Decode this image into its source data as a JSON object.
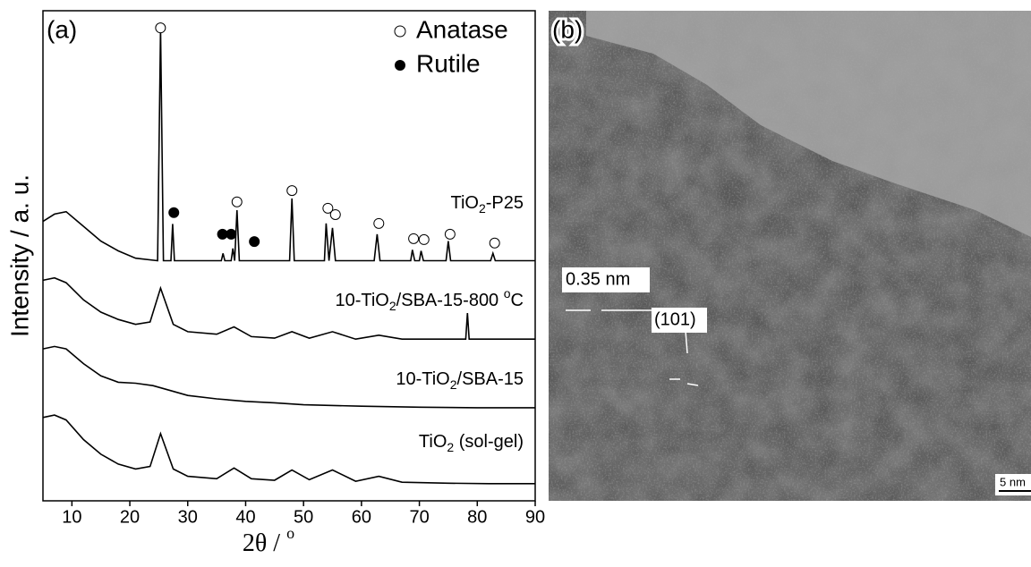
{
  "panel_labels": [
    "(a)",
    "(b)"
  ],
  "chart_data": {
    "type": "line",
    "x_label": [
      "2θ / ",
      "o"
    ],
    "y_label": "Intensity / a. u.",
    "xlim": [
      5,
      90
    ],
    "xticks": [
      10,
      20,
      30,
      40,
      50,
      60,
      70,
      80,
      90
    ],
    "ylim": [
      0,
      100
    ],
    "series": [
      {
        "name": [
          "TiO",
          "2",
          "-P25"
        ],
        "color": "#000000",
        "x": [
          5,
          7,
          9,
          11,
          13,
          15,
          18,
          21,
          24.8,
          25.3,
          25.8,
          27.1,
          27.4,
          27.7,
          35.8,
          36.1,
          36.4,
          37.5,
          37.8,
          38.1,
          38.5,
          38.9,
          47.6,
          48,
          48.4,
          53.6,
          53.9,
          54.4,
          55,
          55.5,
          62.2,
          62.7,
          63.2,
          68.5,
          68.8,
          69.2,
          70,
          70.3,
          70.7,
          74.6,
          75,
          75.4,
          82.3,
          82.7,
          83.1,
          90
        ],
        "values": [
          57,
          58.5,
          59,
          57,
          55,
          53,
          51,
          49.5,
          49,
          96.4,
          49,
          49,
          56.5,
          49,
          49,
          50.5,
          49,
          49,
          51.5,
          49,
          59.3,
          49,
          49,
          61.7,
          49,
          49,
          56.6,
          49,
          55.7,
          49,
          49,
          54.4,
          49,
          49,
          51.2,
          49,
          49,
          51,
          49,
          49,
          53,
          49,
          49,
          50.5,
          49,
          49
        ]
      },
      {
        "name": [
          "10-TiO",
          "2",
          "/SBA-15-800 ",
          "o",
          "C"
        ],
        "color": "#000000",
        "x": [
          5,
          7,
          9,
          12,
          15,
          18,
          21,
          23.5,
          25.3,
          27.5,
          30,
          35,
          38,
          41,
          45,
          48,
          51,
          55,
          59,
          63,
          67,
          78,
          78.3,
          78.6,
          90
        ],
        "values": [
          45,
          45.5,
          44.5,
          41,
          38.5,
          37,
          36,
          36.5,
          43.4,
          36,
          34.5,
          34,
          35.5,
          33.5,
          33.2,
          34.5,
          33.2,
          34.5,
          33,
          33.8,
          33,
          33,
          38.3,
          33,
          33
        ]
      },
      {
        "name": [
          "10-TiO",
          "2",
          "/SBA-15"
        ],
        "color": "#000000",
        "x": [
          5,
          7,
          9,
          12,
          15,
          18,
          21,
          24,
          27,
          30,
          35,
          40,
          45,
          50,
          60,
          70,
          80,
          90
        ],
        "values": [
          31,
          31.5,
          31,
          28,
          25.5,
          24.2,
          24,
          23.5,
          22.5,
          21.5,
          20.8,
          20.3,
          20,
          19.6,
          19.3,
          19.1,
          19,
          19
        ]
      },
      {
        "name": [
          "TiO",
          "2",
          " (sol-gel)"
        ],
        "color": "#000000",
        "x": [
          5,
          7,
          9,
          12,
          15,
          18,
          21,
          23.5,
          25.3,
          27.5,
          30,
          35,
          38,
          41,
          45,
          48,
          51,
          55,
          59,
          63,
          67,
          75,
          82,
          90
        ],
        "values": [
          17,
          17.5,
          16.5,
          12.5,
          9.5,
          7.5,
          6.5,
          7,
          13.7,
          6.5,
          5,
          4.5,
          6.7,
          4.5,
          4.2,
          6.3,
          4.3,
          6.3,
          4,
          5,
          3.8,
          3.6,
          3.5,
          3.5
        ]
      }
    ],
    "markers": [
      {
        "name": "Anatase",
        "x": [
          25.3,
          38.5,
          48,
          54.2,
          55.5,
          63,
          69,
          70.8,
          75.3,
          83
        ],
        "y": [
          96.5,
          61,
          63.3,
          59.7,
          58.4,
          56.6,
          53.5,
          53.3,
          54.4,
          52.6
        ]
      },
      {
        "name": "Rutile",
        "x": [
          27.6,
          36,
          37.5,
          41.5
        ],
        "y": [
          58.8,
          54.4,
          54.4,
          52.9
        ]
      }
    ]
  },
  "image": {
    "annotations": [
      "0.35 nm",
      "(101)"
    ],
    "scale_bar": "5 nm"
  }
}
